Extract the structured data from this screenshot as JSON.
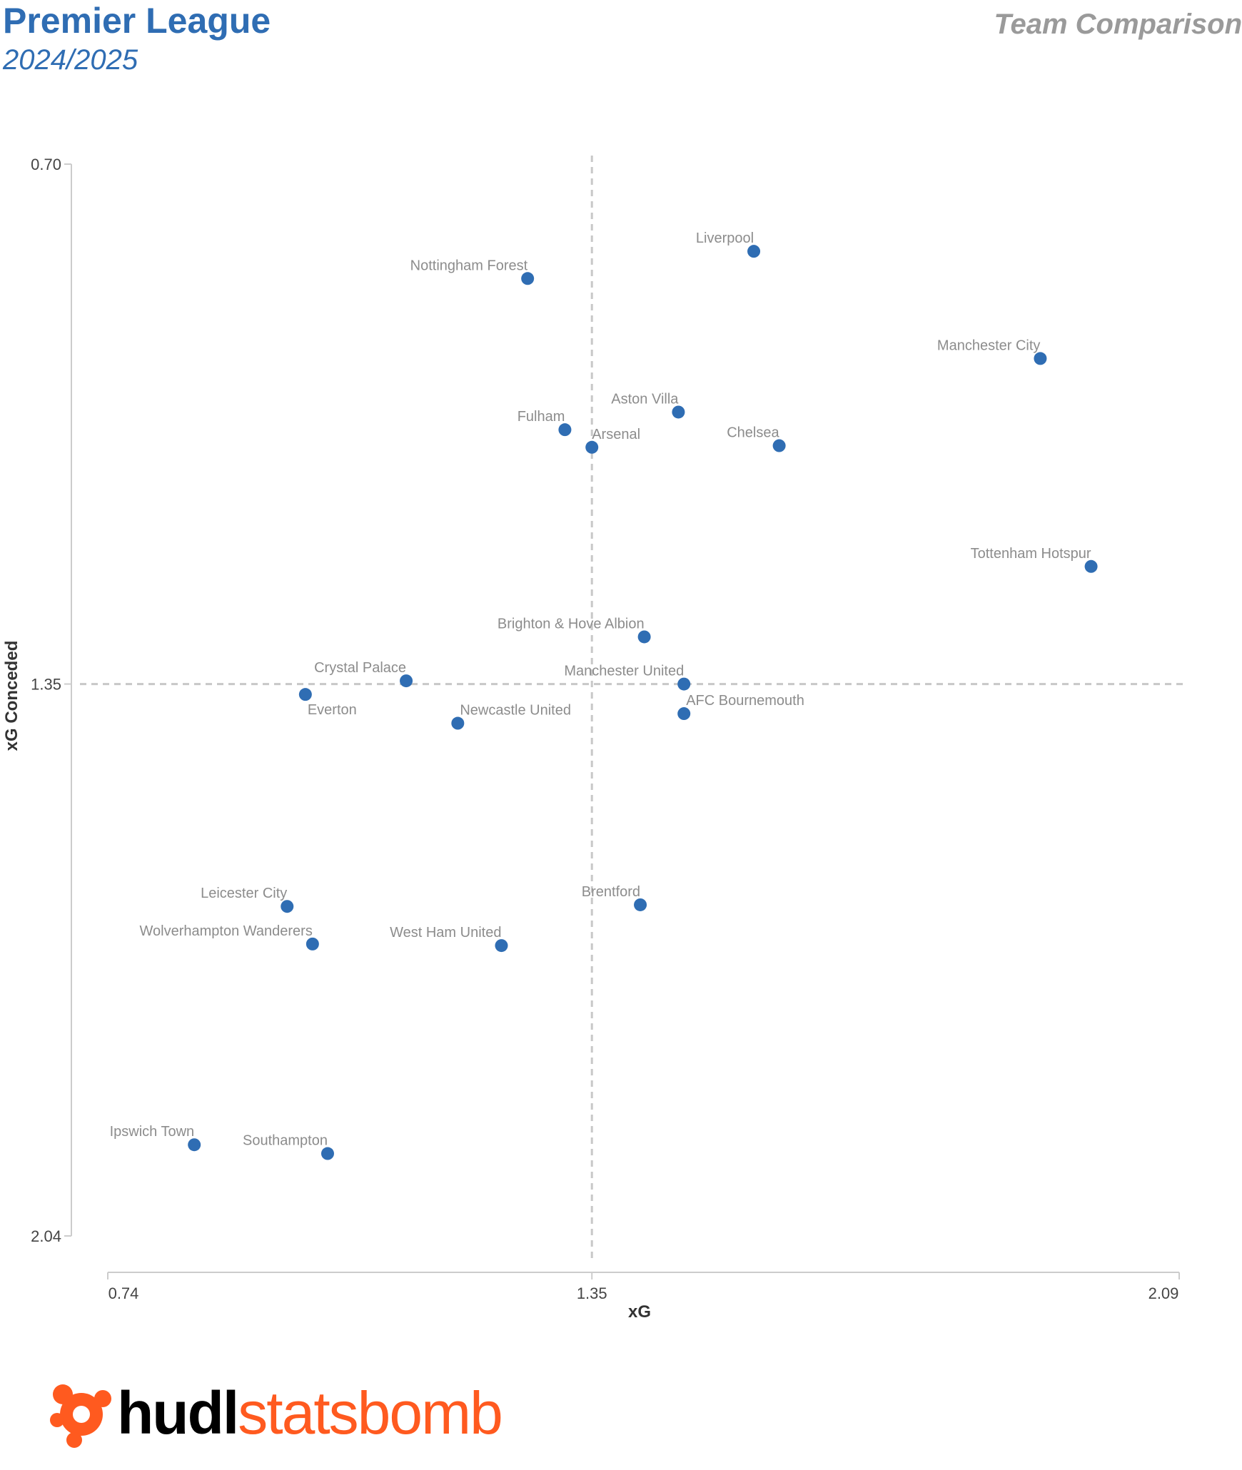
{
  "header": {
    "title": "Premier League",
    "season": "2024/2025",
    "right_title": "Team Comparison"
  },
  "logo": {
    "part1": "hudl",
    "part2": "statsbomb",
    "icon": "statsbomb-logo-icon"
  },
  "colors": {
    "title": "#2f6db3",
    "point": "#2f6db3",
    "label": "#8c8c8c",
    "axis": "#cccccc",
    "reference": "#c8c8c8",
    "right_title": "#9a9a9a",
    "logo_orange": "#ff5a1f",
    "logo_black": "#000000"
  },
  "chart_data": {
    "type": "scatter",
    "xlabel": "xG",
    "ylabel": "xG Conceded",
    "xlim": [
      0.74,
      2.09
    ],
    "ylim": [
      2.04,
      0.7
    ],
    "y_inverted": true,
    "x_ticks": [
      "0.74",
      "1.35",
      "2.09"
    ],
    "y_ticks": [
      "0.70",
      "1.35",
      "2.04"
    ],
    "reference_lines": {
      "x": 1.35,
      "y": 1.35,
      "style": "dashed"
    },
    "grid": false,
    "points": [
      {
        "team": "Liverpool",
        "x": 1.554,
        "y": 0.809
      },
      {
        "team": "Nottingham Forest",
        "x": 1.269,
        "y": 0.843
      },
      {
        "team": "Manchester City",
        "x": 1.915,
        "y": 0.943
      },
      {
        "team": "Aston Villa",
        "x": 1.459,
        "y": 1.01
      },
      {
        "team": "Fulham",
        "x": 1.316,
        "y": 1.032
      },
      {
        "team": "Arsenal",
        "x": 1.35,
        "y": 1.054
      },
      {
        "team": "Chelsea",
        "x": 1.586,
        "y": 1.052
      },
      {
        "team": "Tottenham Hotspur",
        "x": 1.979,
        "y": 1.203
      },
      {
        "team": "Brighton & Hove Albion",
        "x": 1.416,
        "y": 1.291
      },
      {
        "team": "Crystal Palace",
        "x": 1.116,
        "y": 1.346
      },
      {
        "team": "Manchester United",
        "x": 1.466,
        "y": 1.35
      },
      {
        "team": "Everton",
        "x": 0.989,
        "y": 1.363
      },
      {
        "team": "Newcastle United",
        "x": 1.181,
        "y": 1.399
      },
      {
        "team": "AFC Bournemouth",
        "x": 1.466,
        "y": 1.387
      },
      {
        "team": "Brentford",
        "x": 1.411,
        "y": 1.626
      },
      {
        "team": "Leicester City",
        "x": 0.966,
        "y": 1.628
      },
      {
        "team": "Wolverhampton Wanderers",
        "x": 0.998,
        "y": 1.675
      },
      {
        "team": "West Ham United",
        "x": 1.236,
        "y": 1.677
      },
      {
        "team": "Ipswich Town",
        "x": 0.849,
        "y": 1.926
      },
      {
        "team": "Southampton",
        "x": 1.017,
        "y": 1.937
      }
    ]
  }
}
